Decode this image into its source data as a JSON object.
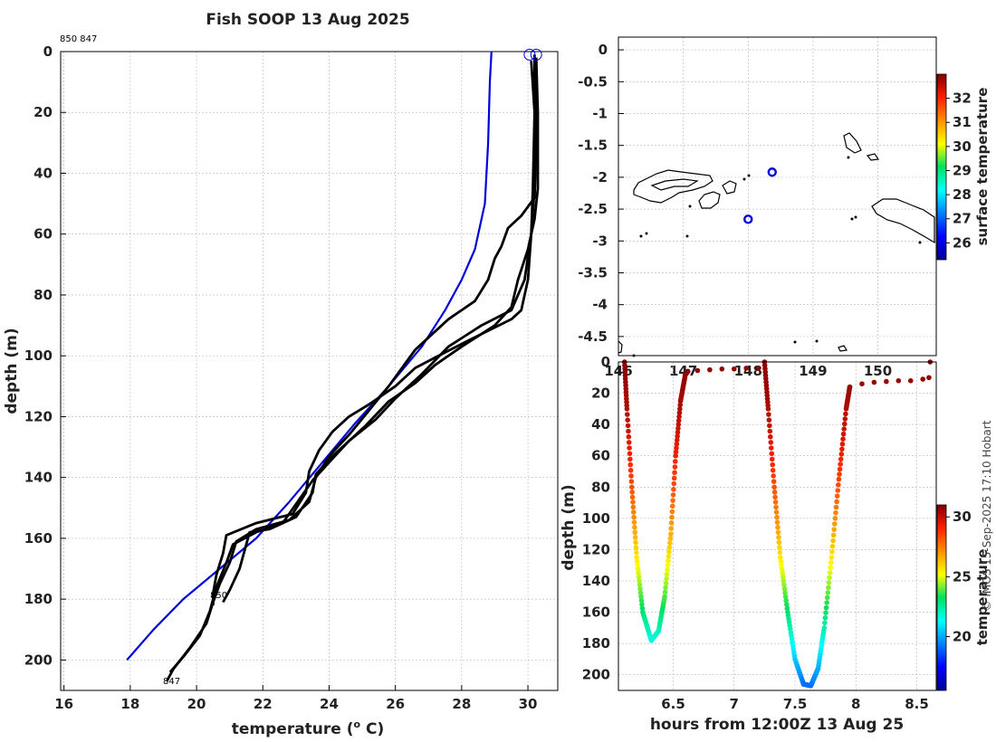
{
  "profile": {
    "title": "Fish SOOP 13 Aug 2025",
    "xlabel_main": "temperature (",
    "xlabel_sup": "o",
    "xlabel_end": " C)",
    "ylabel": "depth (m)",
    "top_label": "850 847",
    "label_850": "850",
    "label_847": "847"
  },
  "map": {
    "colorbar_label": "surface temperature"
  },
  "timeseries": {
    "xlabel": "hours from 12:00Z 13 Aug 25",
    "ylabel": "depth (m)",
    "colorbar_label": "temperature"
  },
  "credit": "© IMOS 15-Sep-2025 17:10 Hobart",
  "colors": {
    "climatology": "#0000dd",
    "profile": "#000000",
    "marker": "#0000dd"
  },
  "chart_data": [
    {
      "type": "line",
      "title": "Fish SOOP 13 Aug 2025",
      "xlabel": "temperature (o C)",
      "ylabel": "depth (m)",
      "xlim": [
        15.9,
        30.9
      ],
      "ylim": [
        210,
        0
      ],
      "xticks": [
        16,
        18,
        20,
        22,
        24,
        26,
        28,
        30
      ],
      "yticks": [
        0,
        20,
        40,
        60,
        80,
        100,
        120,
        140,
        160,
        180,
        200
      ],
      "series": [
        {
          "name": "climatology",
          "color": "#0000dd",
          "points": [
            [
              28.9,
              0
            ],
            [
              28.85,
              10
            ],
            [
              28.8,
              30
            ],
            [
              28.7,
              50
            ],
            [
              28.4,
              65
            ],
            [
              28.0,
              75
            ],
            [
              27.5,
              85
            ],
            [
              26.8,
              97
            ],
            [
              25.8,
              110
            ],
            [
              24.8,
              122
            ],
            [
              23.8,
              135
            ],
            [
              22.8,
              148
            ],
            [
              21.8,
              160
            ],
            [
              20.7,
              170
            ],
            [
              19.6,
              180
            ],
            [
              18.7,
              190
            ],
            [
              17.9,
              200
            ]
          ]
        },
        {
          "name": "profile-1",
          "color": "#000000",
          "points": [
            [
              30.2,
              1
            ],
            [
              30.2,
              10
            ],
            [
              30.25,
              30
            ],
            [
              30.2,
              48
            ],
            [
              29.8,
              54
            ],
            [
              29.4,
              58
            ],
            [
              29.2,
              64
            ],
            [
              29.0,
              68
            ],
            [
              28.8,
              75
            ],
            [
              28.4,
              82
            ],
            [
              27.6,
              88
            ],
            [
              26.6,
              98
            ],
            [
              25.8,
              110
            ],
            [
              25.2,
              118
            ],
            [
              24.6,
              126
            ],
            [
              24.0,
              133
            ],
            [
              23.6,
              140
            ],
            [
              23.4,
              148
            ],
            [
              22.8,
              154
            ],
            [
              21.8,
              157
            ],
            [
              21.2,
              161
            ],
            [
              21.0,
              168
            ],
            [
              20.7,
              175
            ],
            [
              20.5,
              181
            ],
            [
              20.3,
              188
            ],
            [
              19.8,
              196
            ],
            [
              19.3,
              203
            ],
            [
              19.1,
              207
            ]
          ]
        },
        {
          "name": "profile-2",
          "color": "#000000",
          "points": [
            [
              30.2,
              2
            ],
            [
              30.25,
              20
            ],
            [
              30.2,
              45
            ],
            [
              30.1,
              60
            ],
            [
              29.9,
              75
            ],
            [
              29.5,
              85
            ],
            [
              28.6,
              90
            ],
            [
              27.6,
              97
            ],
            [
              26.8,
              106
            ],
            [
              26.0,
              114
            ],
            [
              25.4,
              121
            ],
            [
              24.6,
              128
            ],
            [
              24.0,
              135
            ],
            [
              23.5,
              141
            ],
            [
              22.6,
              155
            ],
            [
              21.8,
              158
            ],
            [
              21.1,
              162
            ],
            [
              20.9,
              168
            ],
            [
              20.6,
              176
            ],
            [
              20.4,
              184
            ],
            [
              20.1,
              192
            ],
            [
              19.6,
              199
            ],
            [
              19.2,
              204
            ]
          ]
        },
        {
          "name": "profile-3",
          "color": "#000000",
          "points": [
            [
              30.1,
              3
            ],
            [
              30.2,
              20
            ],
            [
              30.15,
              45
            ],
            [
              30.1,
              60
            ],
            [
              30.0,
              75
            ],
            [
              29.8,
              85
            ],
            [
              29.5,
              88
            ],
            [
              28.2,
              95
            ],
            [
              27.3,
              100
            ],
            [
              26.6,
              104
            ],
            [
              26.0,
              110
            ],
            [
              25.2,
              116
            ],
            [
              24.6,
              120
            ],
            [
              24.1,
              125
            ],
            [
              23.7,
              131
            ],
            [
              23.4,
              138
            ],
            [
              23.3,
              145
            ],
            [
              22.9,
              152
            ],
            [
              21.8,
              155
            ],
            [
              20.9,
              159
            ],
            [
              20.8,
              165
            ],
            [
              20.6,
              172
            ],
            [
              20.5,
              178
            ],
            [
              20.5,
              182
            ]
          ]
        },
        {
          "name": "profile-4",
          "color": "#000000",
          "points": [
            [
              30.25,
              2
            ],
            [
              30.3,
              20
            ],
            [
              30.3,
              45
            ],
            [
              30.2,
              55
            ],
            [
              30.0,
              65
            ],
            [
              29.7,
              75
            ],
            [
              29.5,
              84
            ],
            [
              29.0,
              90
            ],
            [
              28.0,
              97
            ],
            [
              27.2,
              103
            ],
            [
              26.6,
              109
            ],
            [
              25.8,
              115
            ],
            [
              25.1,
              123
            ],
            [
              24.5,
              129
            ],
            [
              24.0,
              134
            ],
            [
              23.6,
              139
            ],
            [
              23.5,
              145
            ],
            [
              23.0,
              153
            ],
            [
              22.2,
              157
            ],
            [
              21.6,
              158
            ],
            [
              21.5,
              162
            ],
            [
              21.3,
              170
            ],
            [
              21.0,
              177
            ],
            [
              20.8,
              181
            ]
          ]
        }
      ],
      "markers": [
        [
          30.05,
          1
        ],
        [
          30.25,
          1
        ]
      ]
    },
    {
      "type": "scatter",
      "title": "",
      "xlabel": "",
      "ylabel": "",
      "xlim": [
        146,
        150.9
      ],
      "ylim": [
        -4.8,
        0.2
      ],
      "xticks": [
        146,
        147,
        148,
        149,
        150
      ],
      "yticks": [
        0,
        -0.5,
        -1,
        -1.5,
        -2,
        -2.5,
        -3,
        -3.5,
        -4,
        -4.5
      ],
      "yticklabels": [
        "0",
        "-0.5",
        "-1",
        "-1.5",
        "-2",
        "-2.5",
        "-3",
        "-3.5",
        "-4",
        "-4.5"
      ],
      "xticklabels": [
        "146",
        "147",
        "148",
        "149",
        "150"
      ],
      "points": [
        [
          148.37,
          -1.92
        ],
        [
          148.0,
          -2.66
        ]
      ],
      "colorbar": {
        "label": "surface temperature",
        "range": [
          25.3,
          33.0
        ],
        "ticks": [
          26,
          27,
          28,
          29,
          30,
          31,
          32
        ]
      }
    },
    {
      "type": "scatter",
      "title": "",
      "xlabel": "hours from 12:00Z 13 Aug 25",
      "ylabel": "depth (m)",
      "xlim": [
        6.05,
        8.66
      ],
      "ylim": [
        210,
        0
      ],
      "xticks": [
        6.5,
        7,
        7.5,
        8,
        8.5
      ],
      "xticklabels": [
        "6.5",
        "7",
        "7.5",
        "8",
        "8.5"
      ],
      "yticks": [
        0,
        20,
        40,
        60,
        80,
        100,
        120,
        140,
        160,
        180,
        200
      ],
      "colorbar": {
        "label": "temperature",
        "range": [
          15.5,
          31
        ],
        "ticks": [
          20,
          25,
          30
        ]
      },
      "dives": [
        {
          "t": [
            6.1,
            6.12,
            6.16,
            6.2,
            6.25,
            6.32,
            6.38,
            6.43,
            6.48,
            6.52,
            6.56,
            6.6,
            6.62
          ],
          "d": [
            0,
            30,
            80,
            125,
            160,
            178,
            172,
            150,
            110,
            60,
            25,
            8,
            6
          ]
        },
        {
          "t": [
            7.25,
            7.28,
            7.33,
            7.38,
            7.44,
            7.5,
            7.57,
            7.63,
            7.69,
            7.74,
            7.8,
            7.86,
            7.92,
            7.95
          ],
          "d": [
            0,
            30,
            80,
            125,
            160,
            190,
            206,
            207,
            196,
            170,
            125,
            75,
            30,
            16
          ]
        }
      ],
      "surface": {
        "t": [
          6.62,
          6.7,
          6.8,
          6.9,
          7.0,
          7.1,
          7.2,
          7.95,
          8.05,
          8.15,
          8.25,
          8.35,
          8.45,
          8.55,
          8.6,
          8.61
        ],
        "d": [
          6,
          5.5,
          5,
          4.5,
          4.5,
          4,
          4,
          16,
          14,
          13,
          12.5,
          12,
          12,
          11,
          10,
          0
        ]
      }
    }
  ]
}
